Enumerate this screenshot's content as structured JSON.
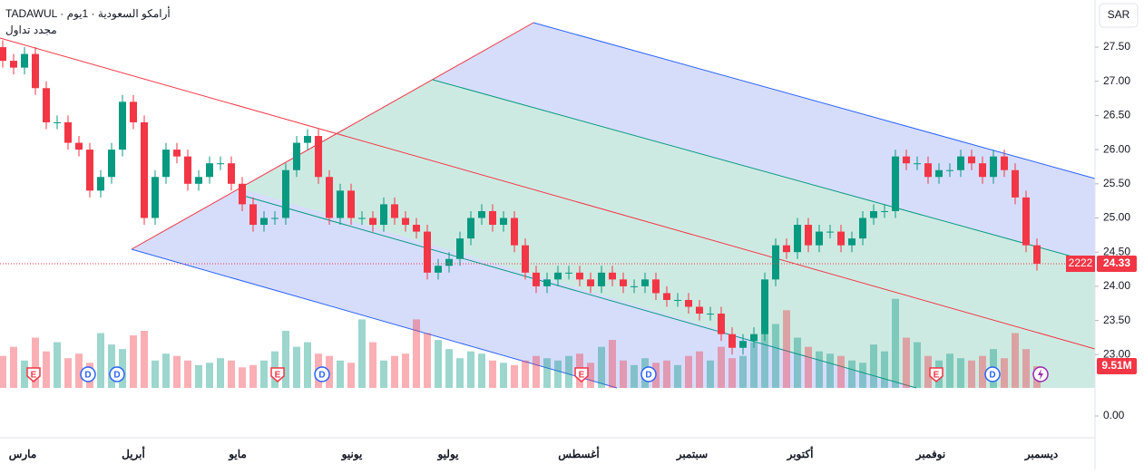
{
  "chart_data": {
    "type": "candlestick",
    "title": "TADAWUL · أرامكو السعودية · 1يوم",
    "subtitle": "مجدد تداول",
    "currency": "SAR",
    "categories": [
      "مارس",
      "أبريل",
      "مايو",
      "يونيو",
      "يوليو",
      "أغسطس",
      "سبتمبر",
      "أكتوبر",
      "نوفمبر",
      "ديسمبر"
    ],
    "open": [
      27.5,
      27.3,
      27.2,
      27.4,
      26.9,
      26.4,
      26.4,
      26.1,
      26.0,
      25.4,
      25.6,
      26.0,
      26.7,
      26.4,
      25.0,
      25.6,
      26.0,
      25.9,
      25.5,
      25.6,
      25.8,
      25.8,
      25.5,
      25.2,
      24.9,
      25.0,
      25.0,
      25.7,
      26.1,
      26.2,
      25.6,
      25.0,
      25.4,
      25.0,
      25.0,
      24.9,
      25.2,
      25.0,
      24.9,
      24.8,
      24.2,
      24.3,
      24.4,
      24.7,
      25.0,
      25.1,
      24.9,
      25.0,
      24.6,
      24.2,
      24.0,
      24.1,
      24.2,
      24.2,
      24.1,
      24.0,
      24.2,
      24.1,
      24.0,
      24.0,
      24.1,
      23.9,
      23.8,
      23.8,
      23.7,
      23.6,
      23.6,
      23.3,
      23.1,
      23.2,
      23.3,
      24.1,
      24.6,
      24.5,
      24.9,
      24.6,
      24.8,
      24.8,
      24.6,
      24.7,
      25.0,
      25.1,
      25.1,
      25.9,
      25.8,
      25.8,
      25.6,
      25.7,
      25.7,
      25.9,
      25.8,
      25.6,
      25.9,
      25.7,
      25.3,
      24.6
    ],
    "high": [
      27.6,
      27.4,
      27.5,
      27.5,
      27.0,
      26.5,
      26.5,
      26.2,
      26.1,
      25.7,
      26.1,
      26.8,
      26.8,
      26.5,
      25.7,
      26.1,
      26.1,
      26.0,
      25.7,
      25.9,
      25.9,
      25.9,
      25.6,
      25.3,
      25.1,
      25.1,
      25.8,
      26.2,
      26.3,
      26.3,
      25.7,
      25.5,
      25.5,
      25.1,
      25.1,
      25.3,
      25.3,
      25.1,
      25.0,
      24.9,
      24.4,
      24.5,
      24.8,
      25.1,
      25.2,
      25.2,
      25.1,
      25.1,
      24.7,
      24.3,
      24.2,
      24.3,
      24.3,
      24.3,
      24.2,
      24.3,
      24.3,
      24.2,
      24.1,
      24.2,
      24.2,
      24.0,
      23.9,
      23.9,
      23.8,
      23.7,
      23.7,
      23.4,
      23.3,
      23.4,
      24.2,
      24.7,
      24.7,
      25.0,
      25.0,
      24.9,
      24.9,
      24.9,
      24.8,
      25.1,
      25.2,
      25.2,
      26.0,
      26.0,
      25.9,
      25.9,
      25.8,
      25.8,
      26.0,
      26.0,
      25.9,
      26.0,
      26.0,
      25.8,
      25.4,
      24.7
    ],
    "low": [
      27.2,
      27.1,
      27.1,
      26.8,
      26.3,
      26.3,
      26.0,
      25.9,
      25.3,
      25.3,
      25.5,
      25.9,
      26.3,
      24.9,
      24.9,
      25.5,
      25.8,
      25.4,
      25.4,
      25.5,
      25.7,
      25.4,
      25.1,
      24.8,
      24.8,
      24.9,
      24.9,
      25.6,
      26.0,
      25.5,
      24.9,
      24.9,
      24.9,
      24.9,
      24.8,
      24.8,
      24.9,
      24.8,
      24.7,
      24.1,
      24.1,
      24.2,
      24.3,
      24.6,
      24.9,
      24.8,
      24.8,
      24.5,
      24.1,
      23.9,
      23.9,
      24.0,
      24.1,
      24.0,
      23.9,
      23.9,
      24.0,
      23.9,
      23.9,
      23.9,
      23.8,
      23.7,
      23.7,
      23.6,
      23.5,
      23.5,
      23.2,
      23.0,
      23.0,
      23.1,
      23.2,
      24.0,
      24.4,
      24.4,
      24.5,
      24.5,
      24.7,
      24.5,
      24.5,
      24.6,
      24.9,
      25.0,
      25.0,
      25.7,
      25.7,
      25.5,
      25.5,
      25.6,
      25.6,
      25.7,
      25.5,
      25.5,
      25.6,
      25.2,
      24.5,
      24.23
    ],
    "close": [
      27.3,
      27.2,
      27.4,
      26.9,
      26.4,
      26.4,
      26.1,
      26.0,
      25.4,
      25.6,
      26.0,
      26.7,
      26.4,
      25.0,
      25.6,
      26.0,
      25.9,
      25.5,
      25.6,
      25.8,
      25.8,
      25.5,
      25.2,
      24.9,
      25.0,
      25.0,
      25.7,
      26.1,
      26.2,
      25.6,
      25.0,
      25.4,
      25.0,
      25.0,
      24.9,
      25.2,
      25.0,
      24.9,
      24.8,
      24.2,
      24.3,
      24.4,
      24.7,
      25.0,
      25.1,
      24.9,
      25.0,
      24.6,
      24.2,
      24.0,
      24.1,
      24.2,
      24.2,
      24.1,
      24.0,
      24.2,
      24.1,
      24.0,
      24.0,
      24.1,
      23.9,
      23.8,
      23.8,
      23.7,
      23.6,
      23.6,
      23.3,
      23.1,
      23.2,
      23.3,
      24.1,
      24.6,
      24.5,
      24.9,
      24.6,
      24.8,
      24.8,
      24.6,
      24.7,
      25.0,
      25.1,
      25.1,
      25.9,
      25.8,
      25.8,
      25.6,
      25.7,
      25.7,
      25.9,
      25.8,
      25.6,
      25.9,
      25.7,
      25.3,
      24.6,
      24.33
    ],
    "volume": [
      14,
      18,
      12,
      22,
      16,
      20,
      13,
      15,
      11,
      24,
      19,
      17,
      23,
      25,
      12,
      15,
      14,
      12,
      10,
      11,
      13,
      12,
      9,
      10,
      12,
      16,
      25,
      18,
      20,
      15,
      14,
      12,
      11,
      30,
      20,
      12,
      14,
      15,
      30,
      24,
      21,
      17,
      13,
      16,
      15,
      12,
      11,
      10,
      12,
      14,
      13,
      12,
      14,
      15,
      11,
      18,
      21,
      12,
      10,
      13,
      11,
      12,
      10,
      14,
      16,
      12,
      18,
      13,
      14,
      20,
      30,
      28,
      34,
      22,
      18,
      16,
      15,
      14,
      12,
      11,
      19,
      16,
      39,
      22,
      20,
      14,
      12,
      15,
      13,
      12,
      14,
      17,
      13,
      24,
      17,
      9.51
    ],
    "last_price": {
      "value": 24.33,
      "label": "24.33"
    },
    "last_countdown": "2222",
    "last_volume": {
      "value": 9.51,
      "label": "9.51M"
    },
    "up_color": "#089981",
    "down_color": "#f23645",
    "ylim": [
      22.95,
      28.19
    ],
    "yticks": [
      {
        "value": 27.5,
        "label": "27.50"
      },
      {
        "value": 27,
        "label": "27.00"
      },
      {
        "value": 26.5,
        "label": "26.50"
      },
      {
        "value": 26,
        "label": "26.00"
      },
      {
        "value": 25.5,
        "label": "25.50"
      },
      {
        "value": 25,
        "label": "25.00"
      },
      {
        "value": 24.5,
        "label": "24.50"
      },
      {
        "value": 24,
        "label": "24.00"
      },
      {
        "value": 23.5,
        "label": "23.50"
      },
      {
        "value": 23,
        "label": "23.00"
      }
    ],
    "volume_tick": {
      "value": 0,
      "label": "0.00"
    },
    "events": [
      "E",
      "D",
      "D",
      "E",
      "D",
      "E",
      "D",
      "E",
      "D"
    ]
  }
}
